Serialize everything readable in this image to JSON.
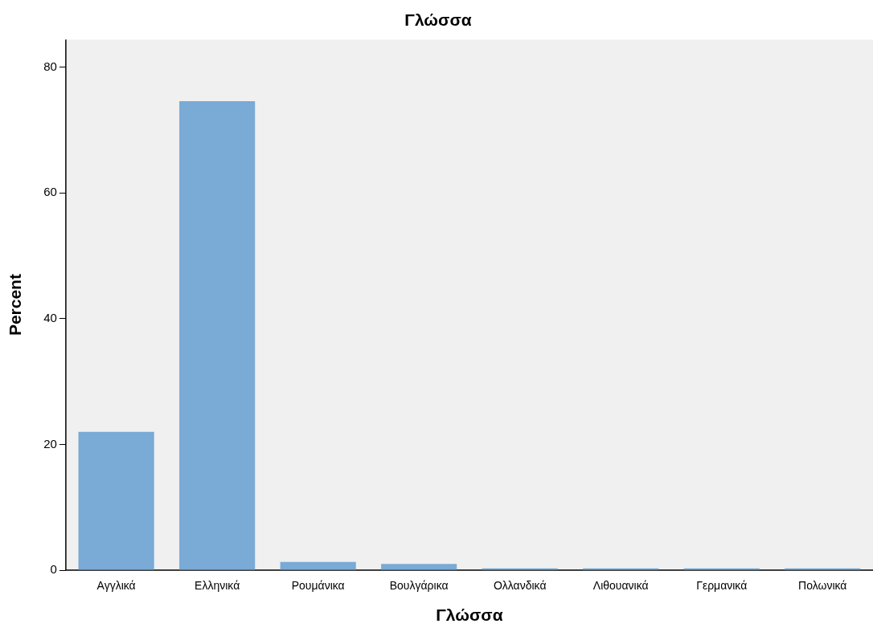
{
  "chart_data": {
    "type": "bar",
    "title": "Γλώσσα",
    "xlabel": "Γλώσσα",
    "ylabel": "Percent",
    "categories": [
      "Αγγλικά",
      "Ελληνικά",
      "Ρουμάνικα",
      "Βουλγάρικα",
      "Ολλανδικά",
      "Λιθουανικά",
      "Γερμανικά",
      "Πολωνικά"
    ],
    "values": [
      22.0,
      74.6,
      1.3,
      1.0,
      0.3,
      0.3,
      0.3,
      0.3
    ],
    "color": "#7aaad6",
    "ylim": [
      0,
      84.4
    ],
    "yticks": [
      0,
      20,
      40,
      60,
      80
    ],
    "grid": false,
    "legend": false
  }
}
